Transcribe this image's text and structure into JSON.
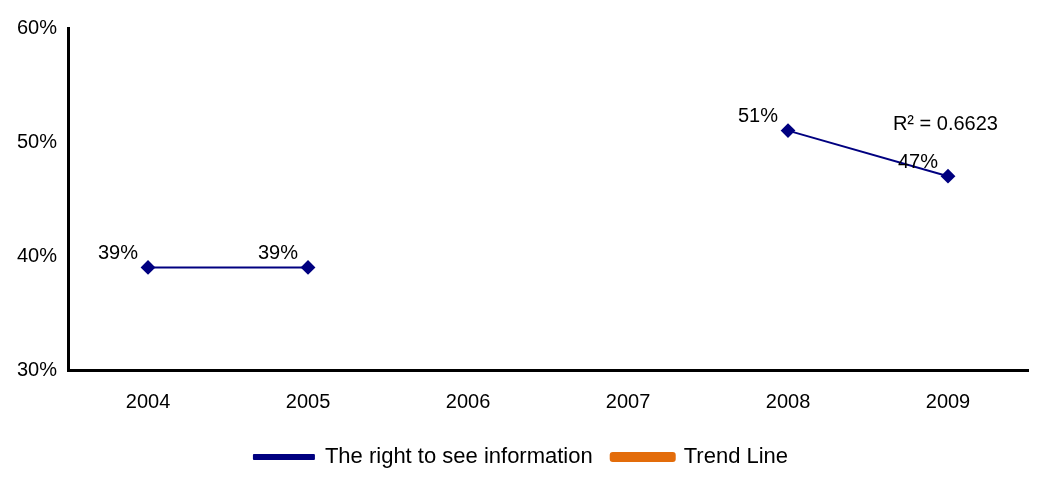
{
  "chart_data": {
    "type": "line",
    "categories": [
      "2004",
      "2005",
      "2006",
      "2007",
      "2008",
      "2009"
    ],
    "series": [
      {
        "name": "The right to see information",
        "color": "#000080",
        "values": [
          39,
          39,
          null,
          null,
          51,
          47
        ],
        "value_labels": [
          "39%",
          "39%",
          null,
          null,
          "51%",
          "47%"
        ],
        "marker": "diamond"
      },
      {
        "name": "Trend Line",
        "color": "#e36c0a",
        "values": [
          null,
          null,
          null,
          null,
          null,
          null
        ],
        "marker": "none"
      }
    ],
    "ylim": [
      30,
      60
    ],
    "yticks": [
      {
        "value": 30,
        "label": "30%"
      },
      {
        "value": 40,
        "label": "40%"
      },
      {
        "value": 50,
        "label": "50%"
      },
      {
        "value": 60,
        "label": "60%"
      }
    ],
    "grid": false,
    "legend": "bottom",
    "annotations": [
      "R² = 0.6623"
    ]
  }
}
